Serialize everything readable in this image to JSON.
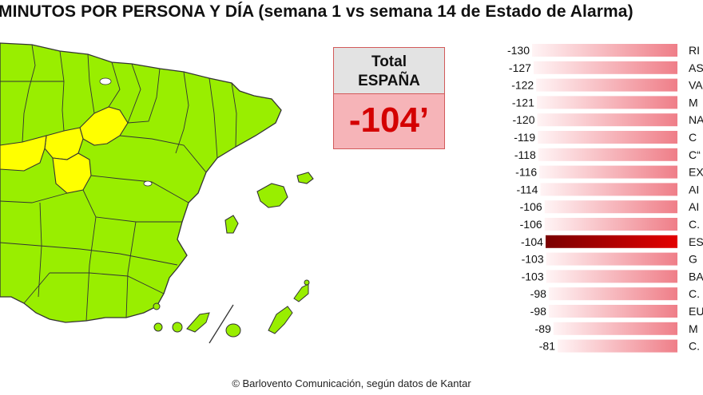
{
  "title": "MINUTOS POR PERSONA Y DÍA (semana 1 vs semana 14 de Estado de Alarma)",
  "total": {
    "label_line1": "Total",
    "label_line2": "ESPAÑA",
    "value": "-104’"
  },
  "footer": "© Barlovento Comunicación, según datos de Kantar",
  "map": {
    "regions_green_color": "#99ee00",
    "regions_yellow_color": "#ffff00",
    "border_color": "#333333"
  },
  "colors": {
    "bar_light": "#fde8ea",
    "bar_dark": "#f08a92",
    "highlight_start": "#800000",
    "highlight_end": "#e00000"
  },
  "chart_data": {
    "type": "bar",
    "orientation": "horizontal",
    "categories": [
      "RI",
      "AS",
      "VA",
      "M",
      "NA",
      "C",
      "C“",
      "EX",
      "AI",
      "AI",
      "C.",
      "ES",
      "G",
      "BA",
      "C.",
      "EU",
      "M",
      "C."
    ],
    "values": [
      -130,
      -127,
      -122,
      -121,
      -120,
      -119,
      -118,
      -116,
      -114,
      -106,
      -106,
      -104,
      -103,
      -103,
      -98,
      -98,
      -89,
      -81
    ],
    "value_labels": [
      "-130",
      "-127",
      "-122",
      "-121",
      "-120",
      "-119",
      "-118",
      "-116",
      "-114",
      "-106",
      "-106",
      "-104",
      "-103",
      "-103",
      "-98",
      "-98",
      "-89",
      "-81"
    ],
    "highlighted_category": "ES",
    "xlim": [
      -130,
      0
    ]
  }
}
